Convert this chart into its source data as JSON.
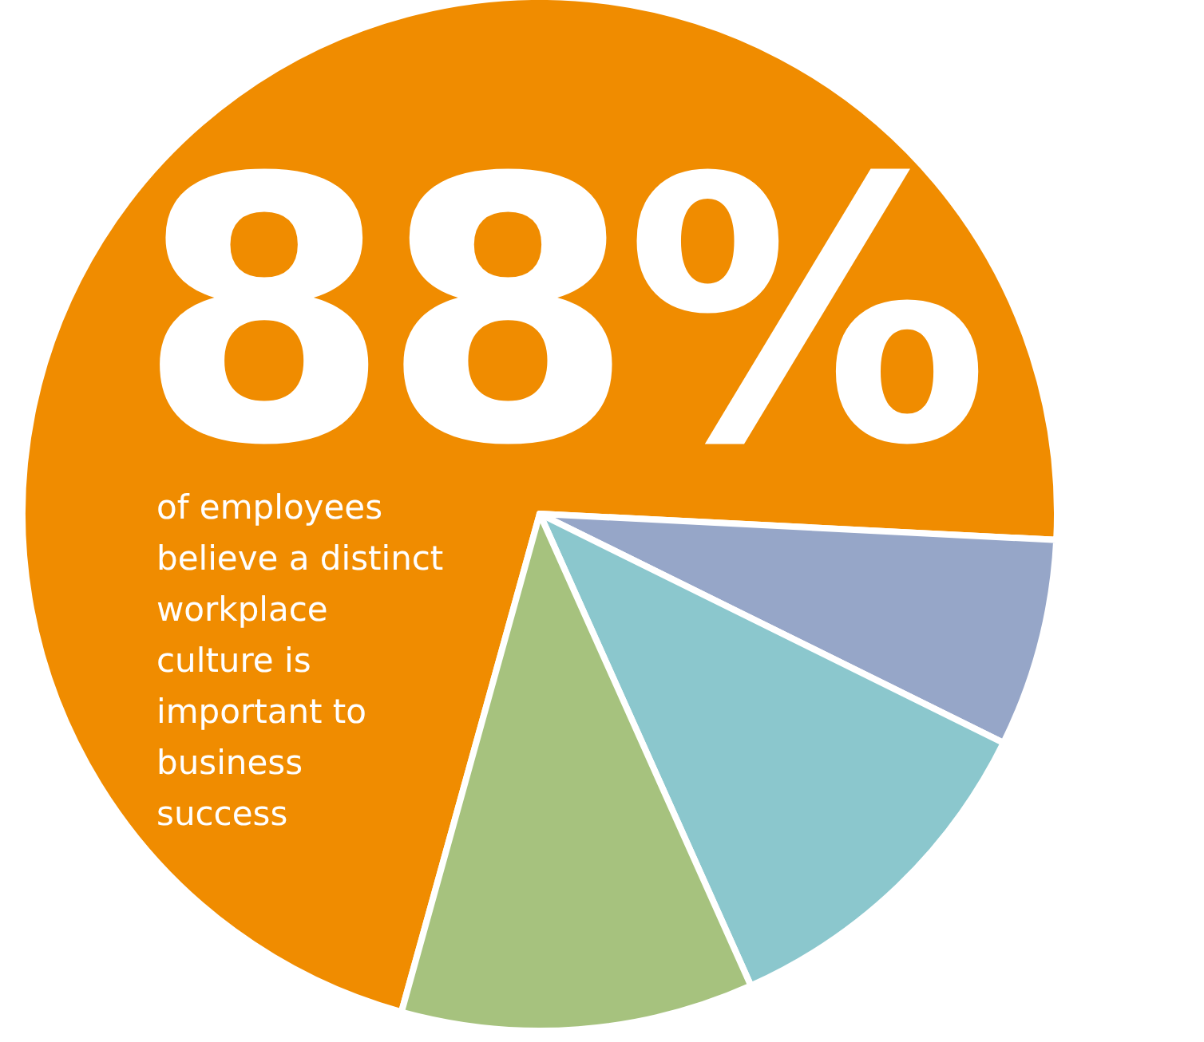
{
  "chart_data": {
    "type": "pie",
    "categories": [
      null,
      null,
      null,
      null
    ],
    "values": [
      71.5,
      6.5,
      11,
      11
    ],
    "colors": [
      "#f08c00",
      "#96a6c8",
      "#8bc7cd",
      "#a6c27e"
    ],
    "annotations": [
      "88%",
      "of employees\nbelieve a distinct\nworkplace\nculture is\nimportant to\nbusiness\nsuccess"
    ]
  }
}
